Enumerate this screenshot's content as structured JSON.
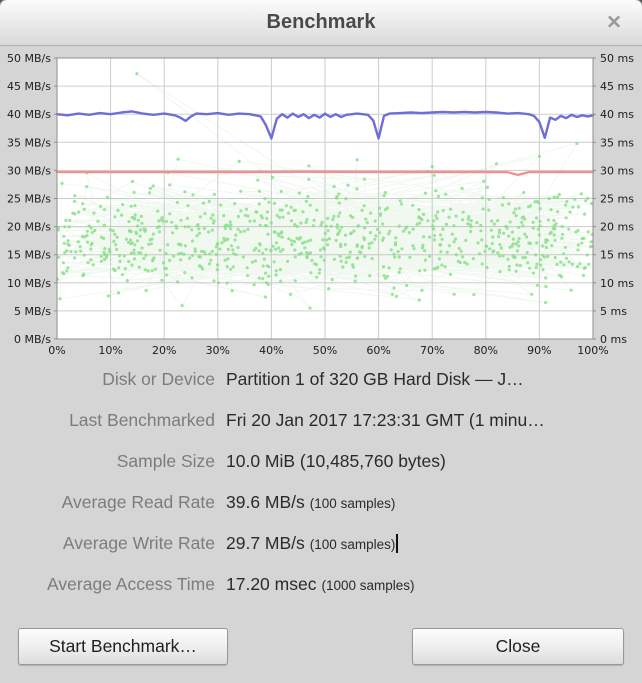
{
  "window": {
    "title": "Benchmark",
    "close_label": "✕"
  },
  "chart_data": {
    "type": "line",
    "title": "",
    "grid": true,
    "legend": "none",
    "x_axis": {
      "min": 0,
      "max": 100,
      "tick_step": 10,
      "labels": [
        "0%",
        "10%",
        "20%",
        "30%",
        "40%",
        "50%",
        "60%",
        "70%",
        "80%",
        "90%",
        "100%"
      ]
    },
    "y_left": {
      "min": 0,
      "max": 50,
      "tick_step": 5,
      "suffix": " MB/s",
      "labels": [
        "0 MB/s",
        "5 MB/s",
        "10 MB/s",
        "15 MB/s",
        "20 MB/s",
        "25 MB/s",
        "30 MB/s",
        "35 MB/s",
        "40 MB/s",
        "45 MB/s",
        "50 MB/s"
      ]
    },
    "y_right": {
      "min": 0,
      "max": 50,
      "tick_step": 5,
      "suffix": " ms",
      "labels": [
        "0 ms",
        "5 ms",
        "10 ms",
        "15 ms",
        "20 ms",
        "25 ms",
        "30 ms",
        "35 ms",
        "40 ms",
        "45 ms",
        "50 ms"
      ]
    },
    "series": [
      {
        "name": "read-rate",
        "type": "line",
        "unit": "MB/s",
        "color": "#6e6ed9",
        "width": 2.4,
        "points": [
          [
            0,
            40.0
          ],
          [
            2,
            39.8
          ],
          [
            4,
            40.1
          ],
          [
            6,
            39.9
          ],
          [
            8,
            40.2
          ],
          [
            10,
            40.0
          ],
          [
            12,
            40.3
          ],
          [
            14,
            40.5
          ],
          [
            16,
            40.1
          ],
          [
            18,
            39.9
          ],
          [
            20,
            40.1
          ],
          [
            22,
            39.8
          ],
          [
            23,
            39.4
          ],
          [
            24,
            38.8
          ],
          [
            25,
            39.6
          ],
          [
            26,
            40.1
          ],
          [
            28,
            40.0
          ],
          [
            30,
            40.2
          ],
          [
            32,
            39.9
          ],
          [
            34,
            40.1
          ],
          [
            36,
            40.0
          ],
          [
            38,
            39.6
          ],
          [
            39,
            38.0
          ],
          [
            40,
            35.7
          ],
          [
            41,
            39.2
          ],
          [
            42,
            40.0
          ],
          [
            43,
            39.4
          ],
          [
            44,
            40.1
          ],
          [
            45,
            39.5
          ],
          [
            46,
            40.0
          ],
          [
            47,
            39.3
          ],
          [
            48,
            39.9
          ],
          [
            49,
            39.4
          ],
          [
            50,
            40.1
          ],
          [
            51,
            39.5
          ],
          [
            52,
            40.0
          ],
          [
            53,
            39.5
          ],
          [
            54,
            39.9
          ],
          [
            56,
            40.1
          ],
          [
            58,
            39.9
          ],
          [
            59,
            38.9
          ],
          [
            60,
            35.7
          ],
          [
            61,
            39.7
          ],
          [
            62,
            40.1
          ],
          [
            64,
            40.2
          ],
          [
            66,
            40.3
          ],
          [
            68,
            40.2
          ],
          [
            70,
            40.3
          ],
          [
            72,
            40.4
          ],
          [
            74,
            40.3
          ],
          [
            76,
            40.4
          ],
          [
            78,
            40.3
          ],
          [
            80,
            40.4
          ],
          [
            82,
            40.3
          ],
          [
            84,
            40.1
          ],
          [
            86,
            40.2
          ],
          [
            88,
            40.0
          ],
          [
            89,
            39.7
          ],
          [
            90,
            38.6
          ],
          [
            91,
            35.8
          ],
          [
            92,
            39.4
          ],
          [
            93,
            39.0
          ],
          [
            94,
            39.7
          ],
          [
            95,
            39.3
          ],
          [
            96,
            39.9
          ],
          [
            97,
            39.5
          ],
          [
            98,
            39.8
          ],
          [
            99,
            39.6
          ],
          [
            100,
            39.8
          ]
        ]
      },
      {
        "name": "write-rate",
        "type": "line",
        "unit": "MB/s",
        "color": "#f09090",
        "width": 2.4,
        "points": [
          [
            0,
            29.7
          ],
          [
            40,
            29.7
          ],
          [
            45,
            29.75
          ],
          [
            60,
            29.7
          ],
          [
            84,
            29.7
          ],
          [
            86,
            29.2
          ],
          [
            88,
            29.7
          ],
          [
            100,
            29.7
          ]
        ]
      },
      {
        "name": "access-time",
        "type": "scatter-line",
        "unit": "ms",
        "dot_color": "#8be08b",
        "line_color": "rgba(110,185,110,0.10)",
        "count": 800,
        "seed": 11,
        "y_mean": 18,
        "y_spread": 9,
        "y_min": 5.5,
        "y_max": 31,
        "outliers": [
          [
            14.9,
            47.2
          ],
          [
            22.6,
            32.0
          ],
          [
            34,
            31.6
          ],
          [
            47,
            30.8
          ],
          [
            56,
            31.9
          ],
          [
            70,
            30.7
          ],
          [
            82,
            31.2
          ],
          [
            90,
            32.5
          ],
          [
            97,
            34.8
          ]
        ]
      }
    ]
  },
  "details": {
    "rows": [
      {
        "label": "Disk or Device",
        "value": "Partition 1 of 320 GB Hard Disk — J…",
        "note": ""
      },
      {
        "label": "Last Benchmarked",
        "value": "Fri 20 Jan 2017 17:23:31 GMT (1 minu…",
        "note": ""
      },
      {
        "label": "Sample Size",
        "value": "10.0 MiB (10,485,760 bytes)",
        "note": ""
      },
      {
        "label": "Average Read Rate",
        "value": "39.6 MB/s",
        "note": "(100 samples)"
      },
      {
        "label": "Average Write Rate",
        "value": "29.7 MB/s",
        "note": "(100 samples)"
      },
      {
        "label": "Average Access Time",
        "value": "17.20 msec",
        "note": "(1000 samples)"
      }
    ]
  },
  "actions": {
    "start": "Start Benchmark…",
    "close": "Close"
  }
}
